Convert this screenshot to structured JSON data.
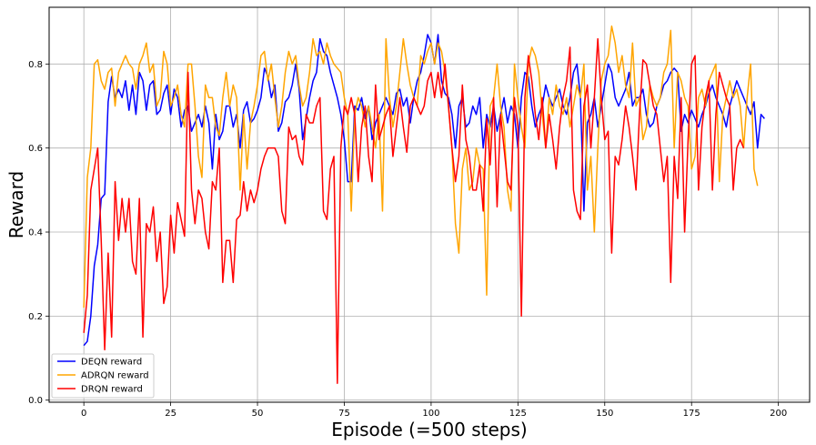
{
  "chart_data": {
    "type": "line",
    "title": "",
    "xlabel": "Episode (=500 steps)",
    "ylabel": "Reward",
    "xlim": [
      -10,
      209
    ],
    "ylim": [
      -0.005,
      0.935
    ],
    "xticks": [
      0,
      25,
      50,
      75,
      100,
      125,
      150,
      175,
      200
    ],
    "yticks": [
      0.0,
      0.2,
      0.4,
      0.6,
      0.8
    ],
    "ytick_labels": [
      "0.0",
      "0.2",
      "0.4",
      "0.6",
      "0.8"
    ],
    "grid": true,
    "legend_position": "lower-left",
    "series": [
      {
        "name": "DEQN reward",
        "color": "#0000ff",
        "values": [
          0.13,
          0.14,
          0.2,
          0.32,
          0.37,
          0.48,
          0.49,
          0.71,
          0.77,
          0.72,
          0.74,
          0.72,
          0.76,
          0.69,
          0.75,
          0.68,
          0.78,
          0.76,
          0.69,
          0.75,
          0.76,
          0.68,
          0.69,
          0.73,
          0.75,
          0.68,
          0.74,
          0.72,
          0.65,
          0.69,
          0.7,
          0.64,
          0.66,
          0.68,
          0.65,
          0.7,
          0.66,
          0.55,
          0.68,
          0.62,
          0.64,
          0.7,
          0.7,
          0.65,
          0.68,
          0.6,
          0.69,
          0.71,
          0.66,
          0.67,
          0.69,
          0.72,
          0.79,
          0.77,
          0.72,
          0.75,
          0.64,
          0.66,
          0.71,
          0.72,
          0.75,
          0.8,
          0.74,
          0.62,
          0.67,
          0.72,
          0.76,
          0.78,
          0.86,
          0.83,
          0.82,
          0.78,
          0.75,
          0.72,
          0.68,
          0.62,
          0.52,
          0.52,
          0.7,
          0.69,
          0.72,
          0.67,
          0.7,
          0.62,
          0.66,
          0.68,
          0.7,
          0.72,
          0.7,
          0.68,
          0.73,
          0.74,
          0.7,
          0.72,
          0.66,
          0.72,
          0.76,
          0.78,
          0.82,
          0.87,
          0.85,
          0.8,
          0.87,
          0.76,
          0.73,
          0.72,
          0.68,
          0.6,
          0.7,
          0.72,
          0.65,
          0.66,
          0.7,
          0.68,
          0.72,
          0.6,
          0.68,
          0.65,
          0.7,
          0.64,
          0.68,
          0.72,
          0.66,
          0.7,
          0.68,
          0.6,
          0.72,
          0.78,
          0.77,
          0.7,
          0.65,
          0.68,
          0.7,
          0.75,
          0.72,
          0.7,
          0.72,
          0.74,
          0.7,
          0.68,
          0.72,
          0.78,
          0.8,
          0.72,
          0.45,
          0.66,
          0.68,
          0.72,
          0.65,
          0.7,
          0.75,
          0.8,
          0.78,
          0.72,
          0.7,
          0.72,
          0.74,
          0.78,
          0.7,
          0.72,
          0.72,
          0.74,
          0.68,
          0.65,
          0.66,
          0.7,
          0.72,
          0.75,
          0.76,
          0.78,
          0.79,
          0.78,
          0.64,
          0.68,
          0.66,
          0.69,
          0.67,
          0.65,
          0.68,
          0.7,
          0.73,
          0.75,
          0.72,
          0.7,
          0.68,
          0.65,
          0.7,
          0.73,
          0.76,
          0.74,
          0.72,
          0.7,
          0.68,
          0.71,
          0.6,
          0.68,
          0.67
        ]
      },
      {
        "name": "ADRQN reward",
        "color": "#ffa500",
        "values": [
          0.22,
          0.53,
          0.6,
          0.8,
          0.81,
          0.76,
          0.74,
          0.78,
          0.79,
          0.7,
          0.78,
          0.8,
          0.82,
          0.8,
          0.79,
          0.74,
          0.8,
          0.82,
          0.85,
          0.78,
          0.8,
          0.7,
          0.72,
          0.83,
          0.8,
          0.7,
          0.72,
          0.75,
          0.68,
          0.65,
          0.8,
          0.8,
          0.7,
          0.58,
          0.53,
          0.75,
          0.72,
          0.72,
          0.65,
          0.63,
          0.72,
          0.78,
          0.7,
          0.75,
          0.72,
          0.5,
          0.68,
          0.55,
          0.66,
          0.7,
          0.75,
          0.82,
          0.83,
          0.76,
          0.8,
          0.72,
          0.65,
          0.7,
          0.78,
          0.83,
          0.8,
          0.82,
          0.75,
          0.7,
          0.72,
          0.78,
          0.86,
          0.82,
          0.83,
          0.8,
          0.85,
          0.82,
          0.8,
          0.79,
          0.78,
          0.72,
          0.68,
          0.45,
          0.68,
          0.72,
          0.7,
          0.65,
          0.7,
          0.65,
          0.6,
          0.68,
          0.45,
          0.86,
          0.72,
          0.65,
          0.7,
          0.78,
          0.86,
          0.8,
          0.75,
          0.72,
          0.7,
          0.82,
          0.8,
          0.83,
          0.85,
          0.8,
          0.85,
          0.83,
          0.78,
          0.7,
          0.6,
          0.42,
          0.35,
          0.55,
          0.6,
          0.5,
          0.52,
          0.6,
          0.56,
          0.55,
          0.25,
          0.7,
          0.72,
          0.8,
          0.7,
          0.65,
          0.5,
          0.45,
          0.8,
          0.72,
          0.65,
          0.6,
          0.8,
          0.84,
          0.82,
          0.78,
          0.68,
          0.6,
          0.72,
          0.68,
          0.75,
          0.7,
          0.68,
          0.72,
          0.65,
          0.7,
          0.75,
          0.72,
          0.8,
          0.5,
          0.58,
          0.4,
          0.6,
          0.76,
          0.8,
          0.82,
          0.89,
          0.85,
          0.78,
          0.82,
          0.75,
          0.72,
          0.85,
          0.7,
          0.72,
          0.62,
          0.65,
          0.75,
          0.72,
          0.7,
          0.72,
          0.78,
          0.8,
          0.88,
          0.6,
          0.78,
          0.76,
          0.72,
          0.7,
          0.55,
          0.58,
          0.72,
          0.74,
          0.7,
          0.76,
          0.78,
          0.8,
          0.52,
          0.68,
          0.72,
          0.76,
          0.72,
          0.74,
          0.7,
          0.6,
          0.72,
          0.8,
          0.55,
          0.51
        ]
      },
      {
        "name": "DRQN reward",
        "color": "#ff0000",
        "values": [
          0.16,
          0.25,
          0.5,
          0.55,
          0.6,
          0.38,
          0.12,
          0.35,
          0.15,
          0.52,
          0.38,
          0.48,
          0.4,
          0.48,
          0.33,
          0.3,
          0.48,
          0.15,
          0.42,
          0.4,
          0.46,
          0.33,
          0.4,
          0.23,
          0.27,
          0.44,
          0.35,
          0.47,
          0.43,
          0.39,
          0.78,
          0.5,
          0.42,
          0.5,
          0.48,
          0.4,
          0.36,
          0.52,
          0.5,
          0.6,
          0.28,
          0.38,
          0.38,
          0.28,
          0.43,
          0.44,
          0.52,
          0.45,
          0.5,
          0.47,
          0.5,
          0.55,
          0.58,
          0.6,
          0.6,
          0.6,
          0.58,
          0.45,
          0.42,
          0.65,
          0.62,
          0.63,
          0.58,
          0.56,
          0.68,
          0.66,
          0.66,
          0.7,
          0.72,
          0.45,
          0.43,
          0.55,
          0.58,
          0.04,
          0.6,
          0.7,
          0.68,
          0.72,
          0.68,
          0.52,
          0.65,
          0.7,
          0.58,
          0.52,
          0.75,
          0.62,
          0.65,
          0.68,
          0.7,
          0.58,
          0.65,
          0.72,
          0.65,
          0.59,
          0.7,
          0.72,
          0.7,
          0.68,
          0.7,
          0.76,
          0.78,
          0.72,
          0.78,
          0.72,
          0.8,
          0.7,
          0.6,
          0.52,
          0.58,
          0.75,
          0.62,
          0.58,
          0.5,
          0.5,
          0.56,
          0.45,
          0.67,
          0.56,
          0.72,
          0.46,
          0.68,
          0.6,
          0.52,
          0.5,
          0.72,
          0.65,
          0.2,
          0.72,
          0.82,
          0.76,
          0.68,
          0.62,
          0.72,
          0.6,
          0.68,
          0.62,
          0.55,
          0.65,
          0.72,
          0.76,
          0.84,
          0.5,
          0.45,
          0.43,
          0.7,
          0.75,
          0.6,
          0.72,
          0.86,
          0.72,
          0.62,
          0.64,
          0.35,
          0.58,
          0.56,
          0.62,
          0.7,
          0.65,
          0.58,
          0.5,
          0.68,
          0.81,
          0.8,
          0.75,
          0.7,
          0.68,
          0.6,
          0.52,
          0.58,
          0.28,
          0.58,
          0.48,
          0.72,
          0.4,
          0.62,
          0.8,
          0.82,
          0.5,
          0.65,
          0.72,
          0.76,
          0.5,
          0.68,
          0.78,
          0.75,
          0.72,
          0.7,
          0.5,
          0.6,
          0.62,
          0.6
        ]
      }
    ]
  }
}
